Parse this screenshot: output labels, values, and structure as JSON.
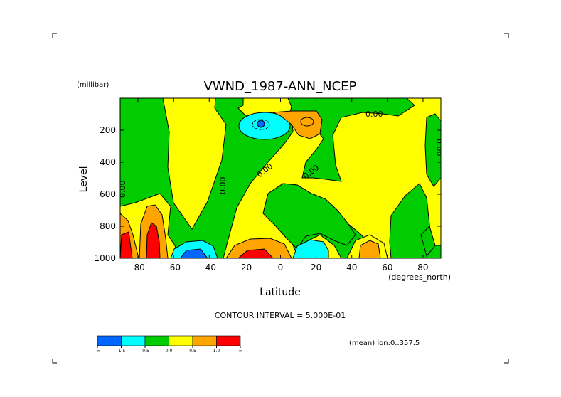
{
  "chart_data": {
    "type": "heatmap",
    "title": "VWND_1987-ANN_NCEP",
    "xlabel": "Latitude",
    "ylabel": "Level",
    "x_unit": "(degrees_north)",
    "y_unit": "(millibar)",
    "xlim": [
      -90,
      90
    ],
    "ylim": [
      0,
      1000
    ],
    "y_inverted": true,
    "x_ticks": [
      "-80",
      "-60",
      "-40",
      "-20",
      "0",
      "20",
      "40",
      "60",
      "80"
    ],
    "y_ticks": [
      "200",
      "400",
      "600",
      "800",
      "1000"
    ],
    "contour_interval_text": "CONTOUR INTERVAL = 5.000E-01",
    "footnote": "(mean) lon:0..357.5",
    "contour_labels": [
      "0.00",
      "0.00",
      "0.00",
      "0.00",
      "0.00",
      "0.00"
    ],
    "colorbar": {
      "labels": [
        "-∞",
        "-1.5",
        "-0.5",
        "0.0",
        "0.5",
        "1.0",
        "∞"
      ],
      "colors": [
        "#0066ff",
        "#00ffff",
        "#00cc00",
        "#ffff00",
        "#ffa500",
        "#ff0000"
      ]
    },
    "features": [
      {
        "kind": "min",
        "lat": -12,
        "level": 170,
        "value": -2.0
      },
      {
        "kind": "max",
        "lat": 15,
        "level": 150,
        "value": 1.0
      },
      {
        "kind": "max",
        "lat": -87,
        "level": 950,
        "value": 2.0
      },
      {
        "kind": "max",
        "lat": -75,
        "level": 930,
        "value": 2.0
      },
      {
        "kind": "min",
        "lat": -52,
        "level": 980,
        "value": -2.0
      },
      {
        "kind": "max",
        "lat": -12,
        "level": 985,
        "value": 2.0
      },
      {
        "kind": "min",
        "lat": 15,
        "level": 980,
        "value": -1.0
      },
      {
        "kind": "max",
        "lat": 50,
        "level": 960,
        "value": 1.0
      }
    ]
  }
}
